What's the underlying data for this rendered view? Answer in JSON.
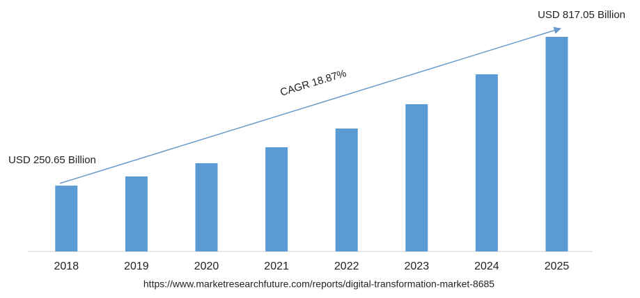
{
  "chart_data": {
    "type": "bar",
    "categories": [
      "2018",
      "2019",
      "2020",
      "2021",
      "2022",
      "2023",
      "2024",
      "2025"
    ],
    "values": [
      250.65,
      285.6,
      335.8,
      396.6,
      468,
      560.6,
      674.3,
      817.05
    ],
    "value_labels": [
      "USD 250.65 Billion",
      null,
      null,
      null,
      null,
      null,
      null,
      "USD 817.05 Billion"
    ],
    "color": "#5b9bd5",
    "annotation": "CAGR 18.87%",
    "source": "https://www.marketresearchfuture.com/reports/digital-transformation-market-8685"
  }
}
